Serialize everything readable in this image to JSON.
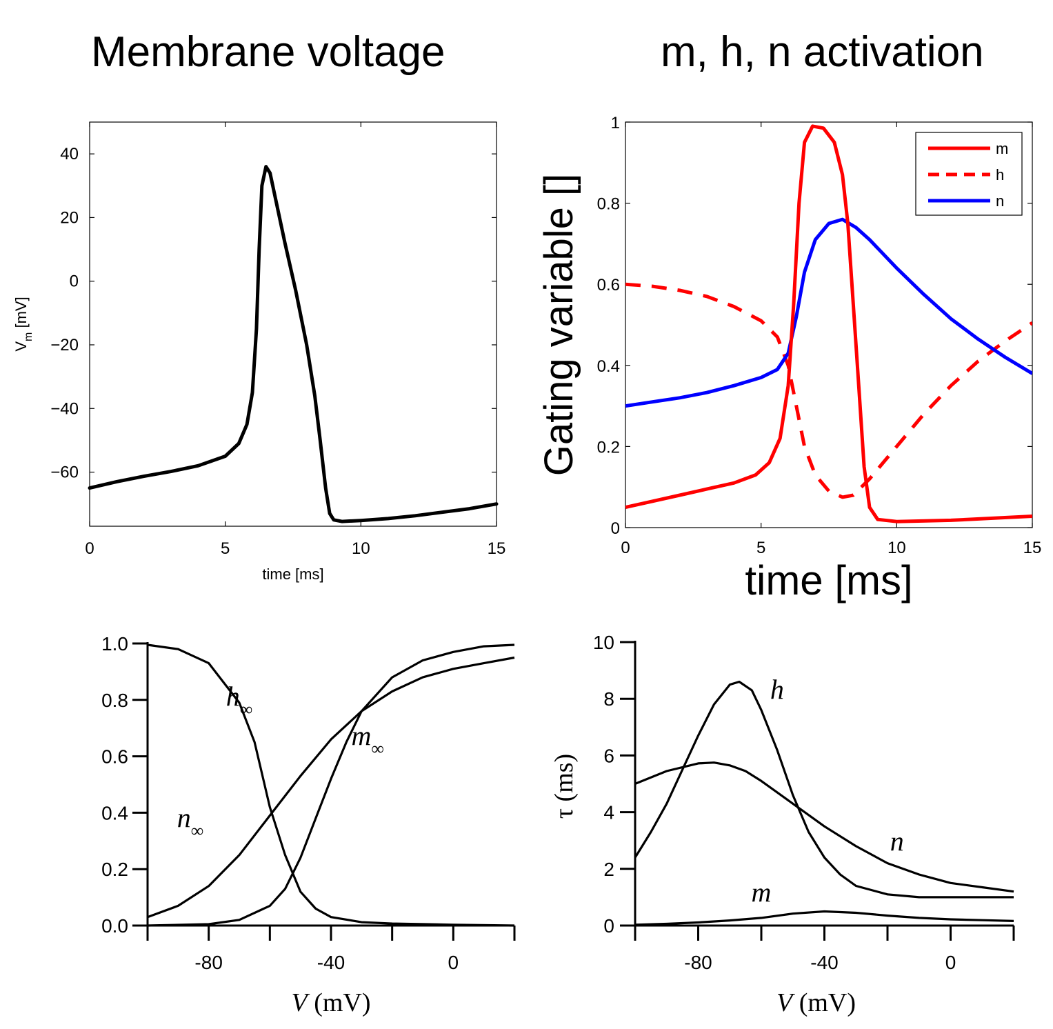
{
  "titles": {
    "left": "Membrane voltage",
    "right": "m, h, n activation"
  },
  "chart_data": [
    {
      "id": "voltage",
      "type": "line",
      "title": "Membrane voltage",
      "xlabel": "time [ms]",
      "ylabel_main": "V",
      "ylabel_sub": "m",
      "ylabel_unit": " [mV]",
      "xlim": [
        0,
        15
      ],
      "ylim": [
        -77,
        50
      ],
      "xticks": [
        0,
        5,
        10,
        15
      ],
      "yticks": [
        40,
        20,
        0,
        -20,
        -40,
        -60
      ],
      "ytick_labels": [
        "40",
        "20",
        "0",
        "−20",
        "−40",
        "−60"
      ],
      "grid": false,
      "series": [
        {
          "color": "#000000",
          "points": [
            [
              0,
              -65
            ],
            [
              1,
              -63
            ],
            [
              2,
              -61.3
            ],
            [
              3,
              -59.8
            ],
            [
              4,
              -58
            ],
            [
              5,
              -55
            ],
            [
              5.5,
              -51
            ],
            [
              5.8,
              -45
            ],
            [
              6.0,
              -35
            ],
            [
              6.15,
              -15
            ],
            [
              6.25,
              10
            ],
            [
              6.35,
              30
            ],
            [
              6.5,
              36
            ],
            [
              6.65,
              34
            ],
            [
              6.8,
              28
            ],
            [
              7.2,
              12
            ],
            [
              7.6,
              -3
            ],
            [
              8.0,
              -20
            ],
            [
              8.3,
              -36
            ],
            [
              8.5,
              -50
            ],
            [
              8.7,
              -65
            ],
            [
              8.85,
              -73
            ],
            [
              9.0,
              -75
            ],
            [
              9.3,
              -75.5
            ],
            [
              10,
              -75.2
            ],
            [
              11,
              -74.6
            ],
            [
              12,
              -73.7
            ],
            [
              13,
              -72.6
            ],
            [
              14,
              -71.5
            ],
            [
              15,
              -70
            ]
          ]
        }
      ]
    },
    {
      "id": "gating",
      "type": "line",
      "xlabel": "time [ms]",
      "ylabel": "Gating variable []",
      "xlim": [
        0,
        15
      ],
      "ylim": [
        0,
        1
      ],
      "xticks": [
        0,
        5,
        10,
        15
      ],
      "yticks": [
        0,
        0.2,
        0.4,
        0.6,
        0.8,
        1
      ],
      "ytick_labels": [
        "0",
        "0.2",
        "0.4",
        "0.6",
        "0.8",
        "1"
      ],
      "grid": false,
      "legend": "top-right",
      "series": [
        {
          "name": "m",
          "color": "#ff0000",
          "dash": "solid",
          "points": [
            [
              0,
              0.05
            ],
            [
              1,
              0.065
            ],
            [
              2,
              0.08
            ],
            [
              3,
              0.095
            ],
            [
              4,
              0.11
            ],
            [
              4.8,
              0.13
            ],
            [
              5.3,
              0.16
            ],
            [
              5.7,
              0.22
            ],
            [
              6.0,
              0.35
            ],
            [
              6.2,
              0.55
            ],
            [
              6.4,
              0.8
            ],
            [
              6.6,
              0.95
            ],
            [
              6.9,
              0.99
            ],
            [
              7.3,
              0.985
            ],
            [
              7.7,
              0.95
            ],
            [
              8.0,
              0.87
            ],
            [
              8.2,
              0.75
            ],
            [
              8.4,
              0.55
            ],
            [
              8.6,
              0.35
            ],
            [
              8.8,
              0.15
            ],
            [
              9.0,
              0.05
            ],
            [
              9.3,
              0.02
            ],
            [
              10,
              0.015
            ],
            [
              12,
              0.018
            ],
            [
              15,
              0.028
            ]
          ]
        },
        {
          "name": "h",
          "color": "#ff0000",
          "dash": "dashed",
          "points": [
            [
              0,
              0.6
            ],
            [
              1,
              0.595
            ],
            [
              2,
              0.585
            ],
            [
              3,
              0.57
            ],
            [
              4,
              0.545
            ],
            [
              5,
              0.51
            ],
            [
              5.6,
              0.47
            ],
            [
              6.0,
              0.4
            ],
            [
              6.3,
              0.3
            ],
            [
              6.6,
              0.2
            ],
            [
              7.0,
              0.13
            ],
            [
              7.5,
              0.09
            ],
            [
              8.0,
              0.075
            ],
            [
              8.4,
              0.08
            ],
            [
              9.0,
              0.12
            ],
            [
              10,
              0.2
            ],
            [
              11,
              0.28
            ],
            [
              12,
              0.35
            ],
            [
              13,
              0.41
            ],
            [
              14,
              0.46
            ],
            [
              15,
              0.505
            ]
          ]
        },
        {
          "name": "n",
          "color": "#0000ff",
          "dash": "solid",
          "points": [
            [
              0,
              0.3
            ],
            [
              1,
              0.31
            ],
            [
              2,
              0.32
            ],
            [
              3,
              0.333
            ],
            [
              4,
              0.35
            ],
            [
              5,
              0.37
            ],
            [
              5.6,
              0.39
            ],
            [
              6.0,
              0.43
            ],
            [
              6.3,
              0.52
            ],
            [
              6.6,
              0.63
            ],
            [
              7.0,
              0.71
            ],
            [
              7.5,
              0.75
            ],
            [
              8.0,
              0.76
            ],
            [
              8.5,
              0.74
            ],
            [
              9,
              0.71
            ],
            [
              10,
              0.64
            ],
            [
              11,
              0.575
            ],
            [
              12,
              0.515
            ],
            [
              13,
              0.465
            ],
            [
              14,
              0.42
            ],
            [
              15,
              0.38
            ]
          ]
        }
      ]
    },
    {
      "id": "steady-state",
      "type": "line",
      "xlabel_var": "V",
      "xlabel_unit": "(mV)",
      "xlim": [
        -100,
        20
      ],
      "ylim": [
        0,
        1
      ],
      "xticks": [
        -80,
        -40,
        0
      ],
      "xtick_labels": [
        "-80",
        "-40",
        "0"
      ],
      "yticks": [
        0.0,
        0.2,
        0.4,
        0.6,
        0.8,
        1.0
      ],
      "ytick_labels": [
        "0.0",
        "0.2",
        "0.4",
        "0.6",
        "0.8",
        "1.0"
      ],
      "grid": false,
      "series": [
        {
          "name": "h∞",
          "color": "#000000",
          "points": [
            [
              -100,
              0.995
            ],
            [
              -90,
              0.98
            ],
            [
              -80,
              0.93
            ],
            [
              -70,
              0.79
            ],
            [
              -65,
              0.65
            ],
            [
              -60,
              0.42
            ],
            [
              -55,
              0.25
            ],
            [
              -50,
              0.12
            ],
            [
              -45,
              0.06
            ],
            [
              -40,
              0.03
            ],
            [
              -30,
              0.012
            ],
            [
              -20,
              0.007
            ],
            [
              0,
              0.003
            ],
            [
              20,
              0.0
            ]
          ]
        },
        {
          "name": "n∞",
          "color": "#000000",
          "points": [
            [
              -100,
              0.03
            ],
            [
              -90,
              0.07
            ],
            [
              -80,
              0.14
            ],
            [
              -70,
              0.25
            ],
            [
              -60,
              0.39
            ],
            [
              -50,
              0.53
            ],
            [
              -40,
              0.66
            ],
            [
              -30,
              0.76
            ],
            [
              -20,
              0.83
            ],
            [
              -10,
              0.88
            ],
            [
              0,
              0.91
            ],
            [
              10,
              0.93
            ],
            [
              20,
              0.95
            ]
          ]
        },
        {
          "name": "m∞",
          "color": "#000000",
          "points": [
            [
              -100,
              0.0
            ],
            [
              -80,
              0.005
            ],
            [
              -70,
              0.02
            ],
            [
              -60,
              0.07
            ],
            [
              -55,
              0.13
            ],
            [
              -50,
              0.24
            ],
            [
              -45,
              0.38
            ],
            [
              -40,
              0.52
            ],
            [
              -35,
              0.65
            ],
            [
              -30,
              0.76
            ],
            [
              -20,
              0.88
            ],
            [
              -10,
              0.94
            ],
            [
              0,
              0.97
            ],
            [
              10,
              0.99
            ],
            [
              20,
              0.995
            ]
          ]
        }
      ],
      "labels": [
        {
          "var": "h",
          "sub": "∞"
        },
        {
          "var": "n",
          "sub": "∞"
        },
        {
          "var": "m",
          "sub": "∞"
        }
      ]
    },
    {
      "id": "time-constants",
      "type": "line",
      "xlabel_var": "V",
      "xlabel_unit": "(mV)",
      "ylabel": "τ (ms)",
      "xlim": [
        -100,
        20
      ],
      "ylim": [
        0,
        10
      ],
      "xticks": [
        -80,
        -40,
        0
      ],
      "xtick_labels": [
        "-80",
        "-40",
        "0"
      ],
      "yticks": [
        0,
        2,
        4,
        6,
        8,
        10
      ],
      "ytick_labels": [
        "0",
        "2",
        "4",
        "6",
        "8",
        "10"
      ],
      "grid": false,
      "series": [
        {
          "name": "h",
          "color": "#000000",
          "points": [
            [
              -100,
              2.4
            ],
            [
              -95,
              3.3
            ],
            [
              -90,
              4.3
            ],
            [
              -85,
              5.5
            ],
            [
              -80,
              6.7
            ],
            [
              -75,
              7.8
            ],
            [
              -70,
              8.5
            ],
            [
              -67,
              8.6
            ],
            [
              -63,
              8.3
            ],
            [
              -60,
              7.6
            ],
            [
              -55,
              6.2
            ],
            [
              -50,
              4.6
            ],
            [
              -45,
              3.3
            ],
            [
              -40,
              2.4
            ],
            [
              -35,
              1.8
            ],
            [
              -30,
              1.4
            ],
            [
              -20,
              1.1
            ],
            [
              -10,
              1.0
            ],
            [
              0,
              1.0
            ],
            [
              20,
              1.0
            ]
          ]
        },
        {
          "name": "n",
          "color": "#000000",
          "points": [
            [
              -100,
              5.0
            ],
            [
              -90,
              5.45
            ],
            [
              -80,
              5.72
            ],
            [
              -75,
              5.75
            ],
            [
              -70,
              5.65
            ],
            [
              -65,
              5.45
            ],
            [
              -60,
              5.1
            ],
            [
              -50,
              4.3
            ],
            [
              -40,
              3.5
            ],
            [
              -30,
              2.8
            ],
            [
              -20,
              2.2
            ],
            [
              -10,
              1.8
            ],
            [
              0,
              1.5
            ],
            [
              10,
              1.35
            ],
            [
              20,
              1.2
            ]
          ]
        },
        {
          "name": "m",
          "color": "#000000",
          "points": [
            [
              -100,
              0.03
            ],
            [
              -90,
              0.06
            ],
            [
              -80,
              0.11
            ],
            [
              -70,
              0.18
            ],
            [
              -60,
              0.27
            ],
            [
              -50,
              0.42
            ],
            [
              -40,
              0.5
            ],
            [
              -30,
              0.45
            ],
            [
              -20,
              0.35
            ],
            [
              -10,
              0.27
            ],
            [
              0,
              0.22
            ],
            [
              10,
              0.19
            ],
            [
              20,
              0.16
            ]
          ]
        }
      ],
      "labels": [
        {
          "var": "h"
        },
        {
          "var": "n"
        },
        {
          "var": "m"
        }
      ]
    }
  ]
}
